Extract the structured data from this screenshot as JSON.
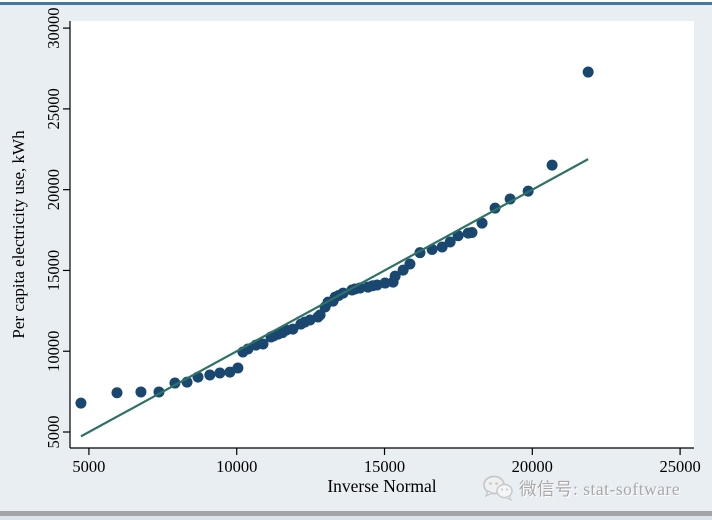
{
  "window": {
    "top_border_color": "#4477a2",
    "bottom_bar_color": "#a2a4a7",
    "background_color": "#e8eef2",
    "plot_background_color": "#ffffff"
  },
  "watermark": {
    "icon": "wechat-icon",
    "text": "微信号: stat-software",
    "color": "#a8a8a8"
  },
  "chart_data": {
    "type": "scatter",
    "title": "",
    "xlabel": "Inverse Normal",
    "ylabel": "Per capita electricity use, kWh",
    "xlim": [
      4360,
      25470
    ],
    "ylim": [
      4010,
      30440
    ],
    "x_ticks": [
      5000,
      10000,
      15000,
      20000,
      25000
    ],
    "y_ticks": [
      5000,
      10000,
      15000,
      20000,
      25000,
      30000
    ],
    "grid": false,
    "legend": "none",
    "marker_color": "#1a476f",
    "line_color": "#2e7265",
    "points": [
      [
        4730,
        6790
      ],
      [
        5950,
        7430
      ],
      [
        6760,
        7480
      ],
      [
        7370,
        7480
      ],
      [
        7910,
        8030
      ],
      [
        8320,
        8090
      ],
      [
        8690,
        8400
      ],
      [
        9090,
        8530
      ],
      [
        9430,
        8650
      ],
      [
        9770,
        8710
      ],
      [
        10040,
        8960
      ],
      [
        10210,
        9950
      ],
      [
        10380,
        10140
      ],
      [
        10650,
        10380
      ],
      [
        10890,
        10450
      ],
      [
        11160,
        10880
      ],
      [
        11250,
        10950
      ],
      [
        11400,
        11060
      ],
      [
        11550,
        11150
      ],
      [
        11670,
        11310
      ],
      [
        11900,
        11370
      ],
      [
        12170,
        11680
      ],
      [
        12300,
        11800
      ],
      [
        12480,
        11930
      ],
      [
        12750,
        12120
      ],
      [
        12820,
        12240
      ],
      [
        12990,
        12740
      ],
      [
        13090,
        13040
      ],
      [
        13260,
        13100
      ],
      [
        13330,
        13350
      ],
      [
        13450,
        13450
      ],
      [
        13600,
        13600
      ],
      [
        13900,
        13790
      ],
      [
        14000,
        13850
      ],
      [
        14170,
        13910
      ],
      [
        14440,
        13970
      ],
      [
        14600,
        14050
      ],
      [
        14750,
        14100
      ],
      [
        15020,
        14220
      ],
      [
        15290,
        14280
      ],
      [
        15360,
        14650
      ],
      [
        15630,
        15020
      ],
      [
        15860,
        15400
      ],
      [
        16200,
        16100
      ],
      [
        16610,
        16300
      ],
      [
        16950,
        16450
      ],
      [
        17220,
        16760
      ],
      [
        17490,
        17150
      ],
      [
        17830,
        17310
      ],
      [
        17960,
        17350
      ],
      [
        18300,
        17930
      ],
      [
        18740,
        18860
      ],
      [
        19250,
        19420
      ],
      [
        19860,
        19910
      ],
      [
        20670,
        21520
      ],
      [
        21890,
        27280
      ]
    ],
    "reference_line": {
      "x1": 4730,
      "y1": 4730,
      "x2": 21890,
      "y2": 21890
    },
    "marker_radius_px": 5.5
  }
}
